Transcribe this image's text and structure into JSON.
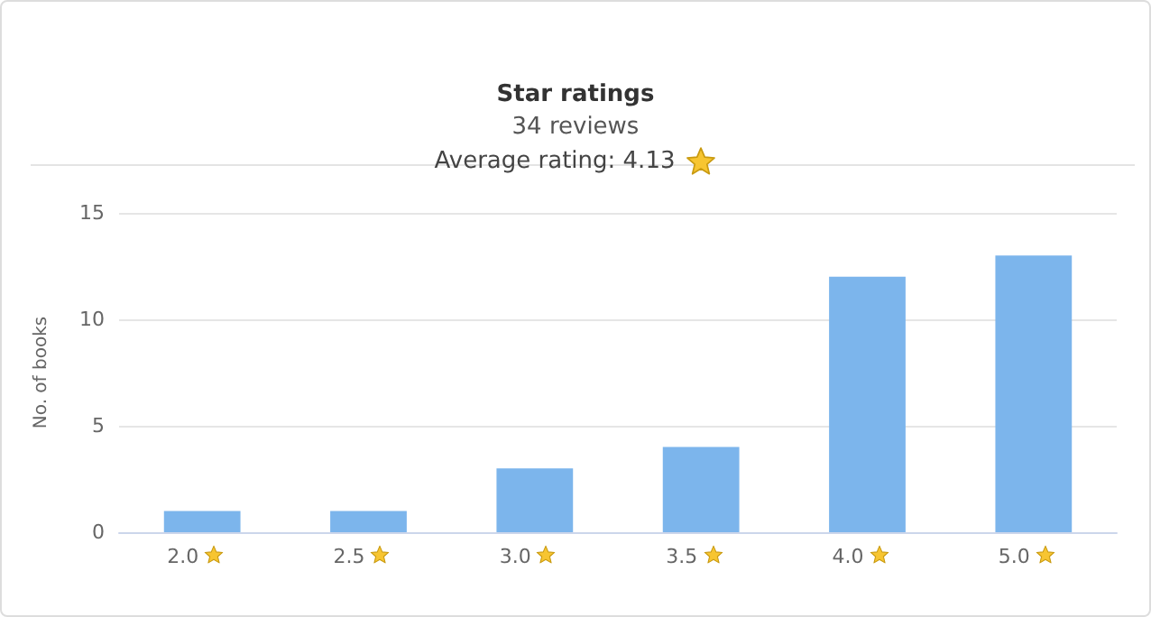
{
  "chart_data": {
    "type": "bar",
    "title": "Star ratings",
    "subtitle": "34 reviews",
    "annotations": [
      "Average rating: 4.13"
    ],
    "ylabel": "No. of books",
    "categories": [
      "2.0",
      "2.5",
      "3.0",
      "3.5",
      "4.0",
      "5.0"
    ],
    "values": [
      1,
      1,
      3,
      4,
      12,
      13
    ],
    "color": "#7cb5ec",
    "ylim": [
      0,
      15
    ],
    "yticks": [
      0,
      5,
      10,
      15
    ],
    "grid": "y"
  }
}
